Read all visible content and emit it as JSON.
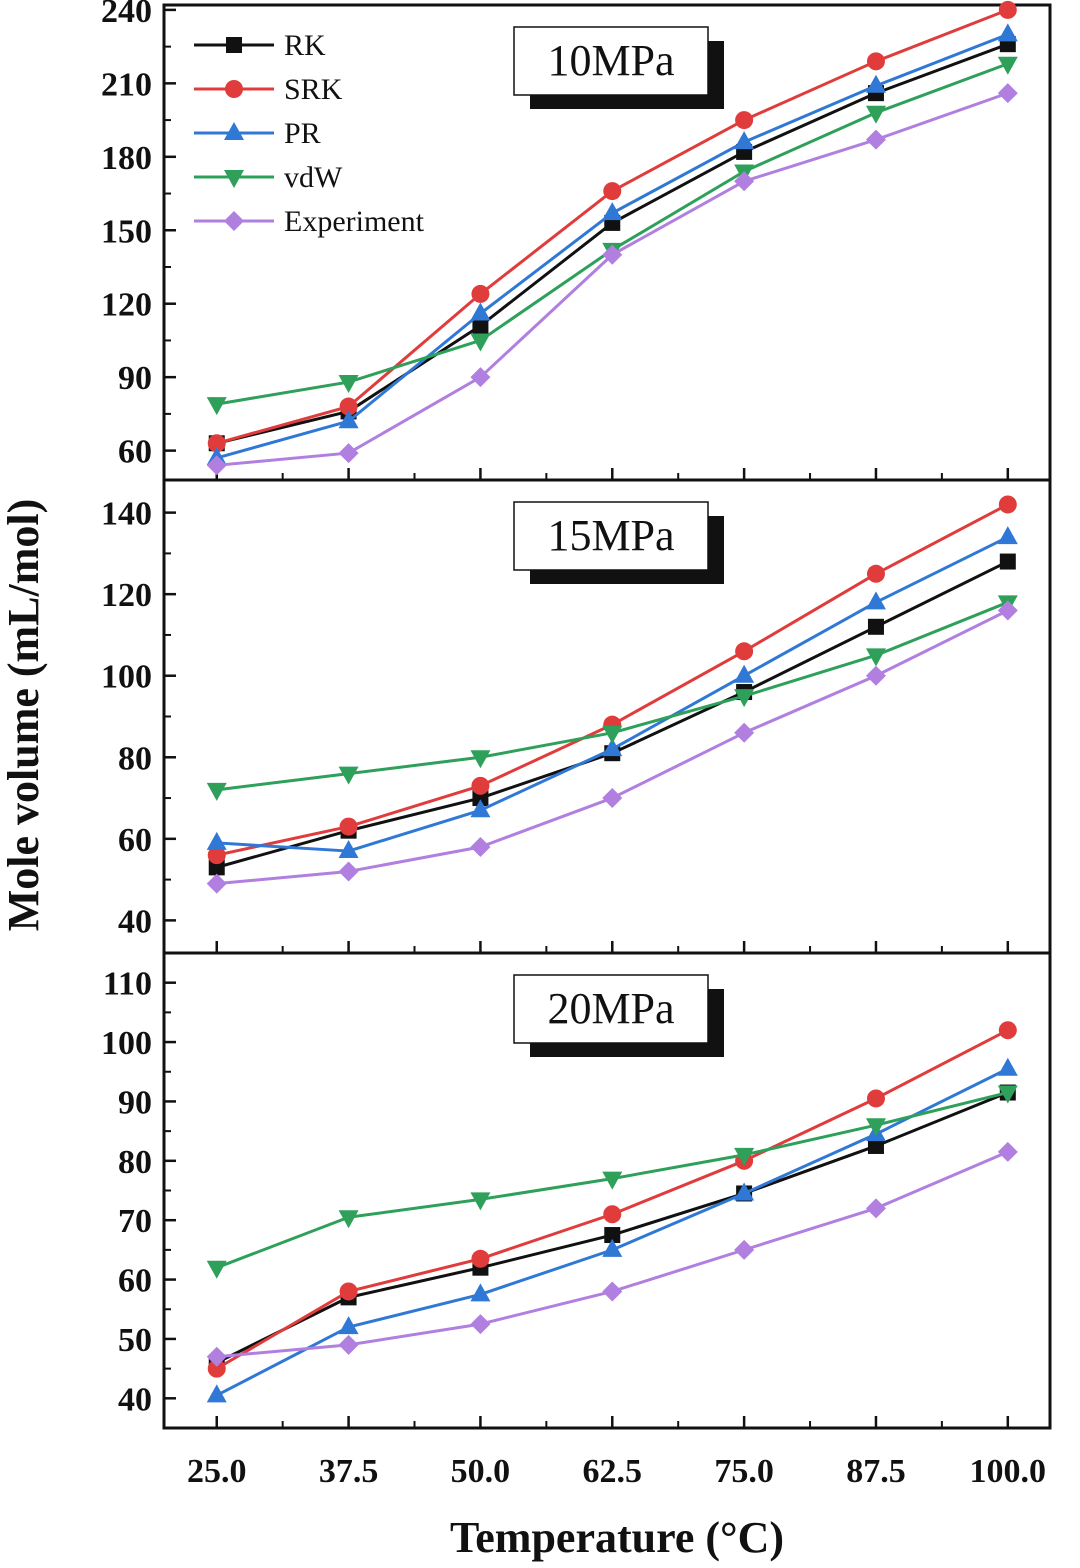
{
  "chart_data": {
    "type": "line",
    "xlabel": "Temperature (°C)",
    "ylabel": "Mole volume (mL/mol)",
    "x": [
      25.0,
      37.5,
      50.0,
      62.5,
      75.0,
      87.5,
      100.0
    ],
    "x_tick_labels": [
      "25.0",
      "37.5",
      "50.0",
      "62.5",
      "75.0",
      "87.5",
      "100.0"
    ],
    "xlim": [
      20,
      104
    ],
    "legend": {
      "placement": "top-left",
      "entries": [
        "RK",
        "SRK",
        "PR",
        "vdW",
        "Experiment"
      ]
    },
    "series_styles": [
      {
        "name": "RK",
        "color": "#111111",
        "marker": "square"
      },
      {
        "name": "SRK",
        "color": "#e03c3c",
        "marker": "circle"
      },
      {
        "name": "PR",
        "color": "#2f78d6",
        "marker": "triangle-up"
      },
      {
        "name": "vdW",
        "color": "#2ea05a",
        "marker": "triangle-down"
      },
      {
        "name": "Experiment",
        "color": "#b07fe0",
        "marker": "diamond"
      }
    ],
    "panels": [
      {
        "title": "10MPa",
        "ylim": [
          48,
          242
        ],
        "yticks": [
          60,
          90,
          120,
          150,
          180,
          210,
          240
        ],
        "series": [
          {
            "name": "RK",
            "values": [
              63,
              76,
              111,
              153,
              182,
              206,
              226
            ]
          },
          {
            "name": "SRK",
            "values": [
              63,
              78,
              124,
              166,
              195,
              219,
              240
            ]
          },
          {
            "name": "PR",
            "values": [
              57,
              72,
              116,
              157,
              186,
              209,
              230
            ]
          },
          {
            "name": "vdW",
            "values": [
              79,
              88,
              105,
              142,
              174,
              198,
              218
            ]
          },
          {
            "name": "Experiment",
            "values": [
              54,
              59,
              90,
              140,
              170,
              187,
              206
            ]
          }
        ]
      },
      {
        "title": "15MPa",
        "ylim": [
          32,
          148
        ],
        "yticks": [
          40,
          60,
          80,
          100,
          120,
          140
        ],
        "series": [
          {
            "name": "RK",
            "values": [
              53,
              62,
              70,
              81,
              96,
              112,
              128
            ]
          },
          {
            "name": "SRK",
            "values": [
              56,
              63,
              73,
              88,
              106,
              125,
              142
            ]
          },
          {
            "name": "PR",
            "values": [
              59,
              57,
              67,
              82,
              100,
              118,
              134
            ]
          },
          {
            "name": "vdW",
            "values": [
              72,
              76,
              80,
              86,
              95,
              105,
              118
            ]
          },
          {
            "name": "Experiment",
            "values": [
              49,
              52,
              58,
              70,
              86,
              100,
              116
            ]
          }
        ]
      },
      {
        "title": "20MPa",
        "ylim": [
          35,
          115
        ],
        "yticks": [
          40,
          50,
          60,
          70,
          80,
          90,
          100,
          110
        ],
        "series": [
          {
            "name": "RK",
            "values": [
              46,
              57,
              62,
              67.5,
              74.5,
              82.5,
              91.5
            ]
          },
          {
            "name": "SRK",
            "values": [
              45,
              58,
              63.5,
              71,
              80,
              90.5,
              102
            ]
          },
          {
            "name": "PR",
            "values": [
              40.5,
              52,
              57.5,
              65,
              74.5,
              84.5,
              95.5
            ]
          },
          {
            "name": "vdW",
            "values": [
              62,
              70.5,
              73.5,
              77,
              81,
              86,
              91.5
            ]
          },
          {
            "name": "Experiment",
            "values": [
              47,
              49,
              52.5,
              58,
              65,
              72,
              81.5
            ]
          }
        ]
      }
    ]
  }
}
